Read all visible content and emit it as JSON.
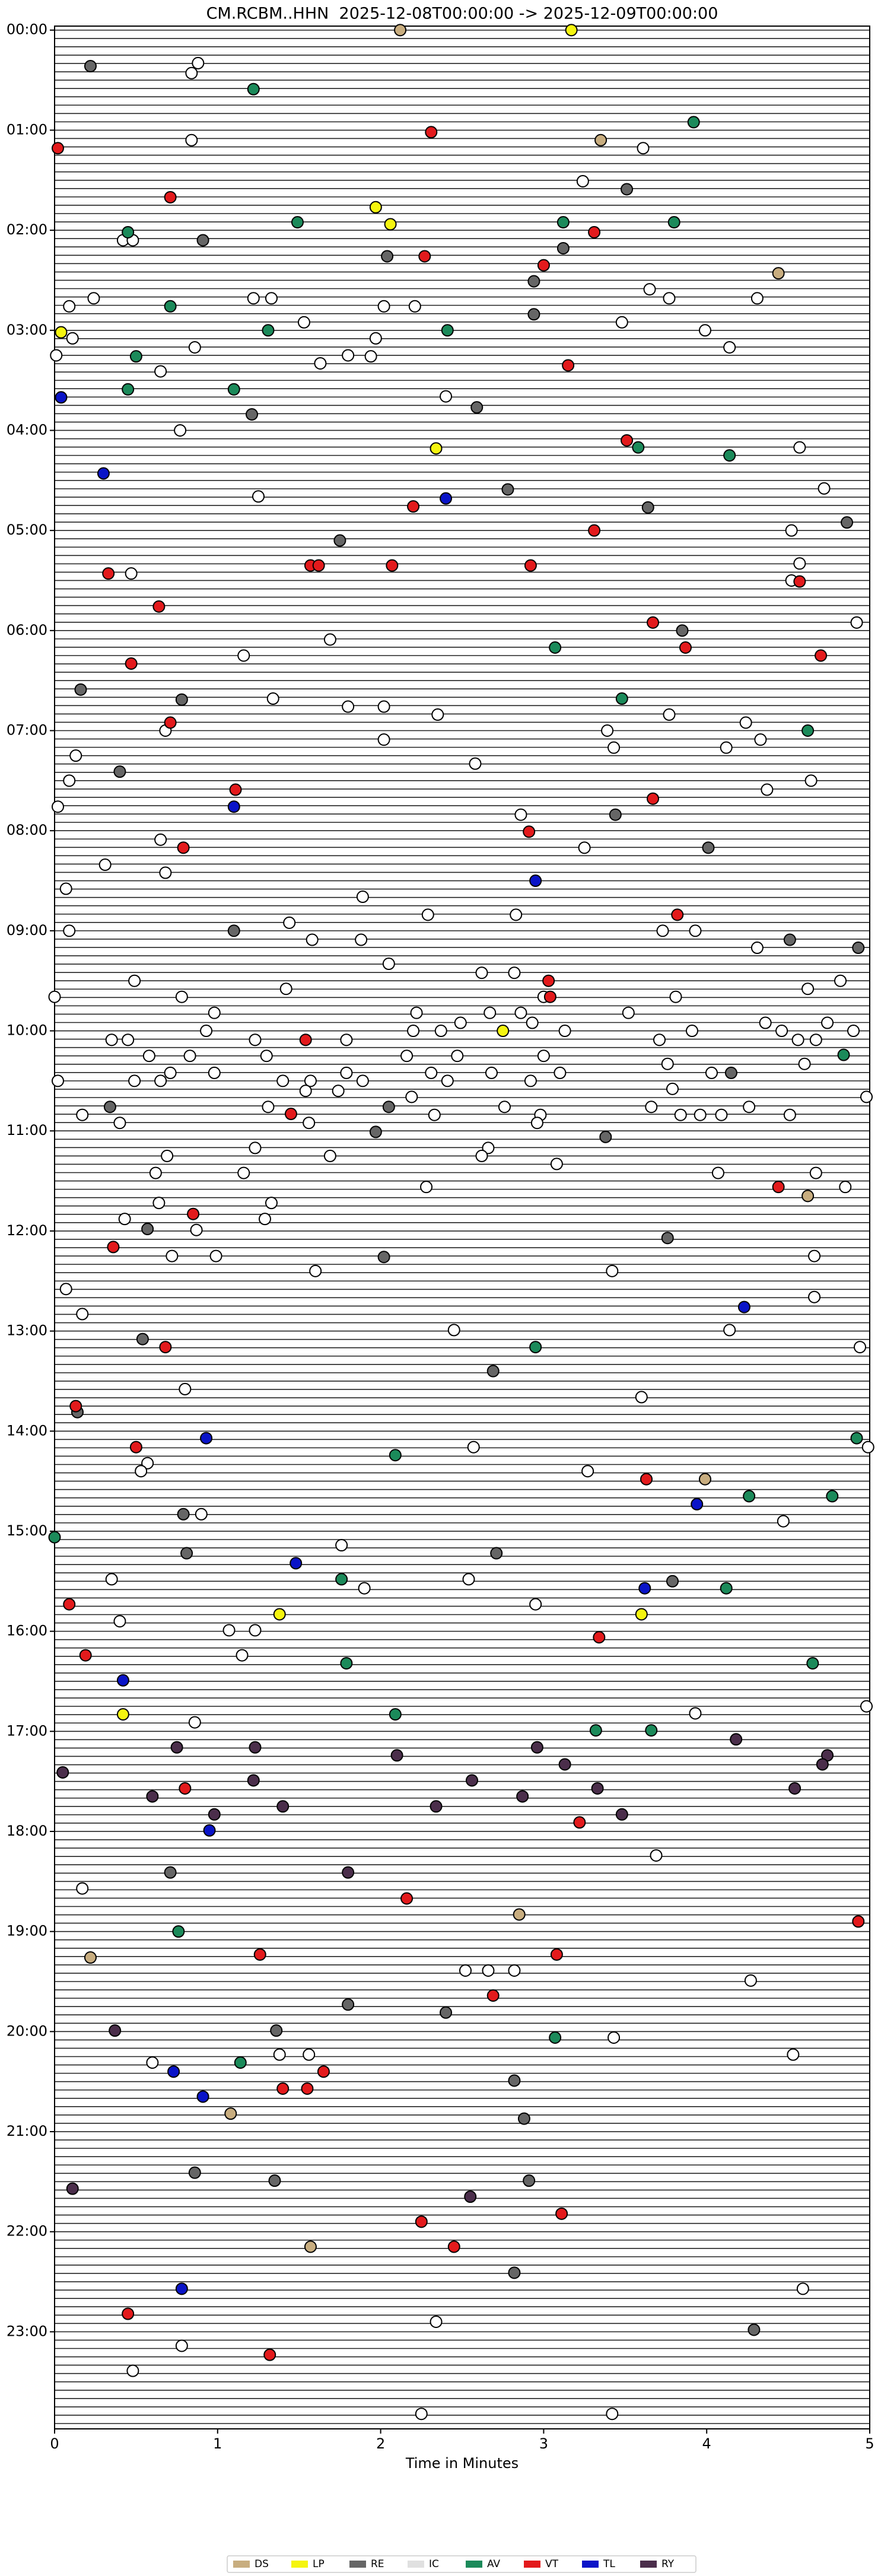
{
  "chart_data": {
    "type": "helicorder",
    "title": "CM.RCBM..HHN  2025-12-08T00:00:00 -> 2025-12-09T00:00:00",
    "x_label": "Time in Minutes",
    "xlim": [
      0,
      5
    ],
    "xticks": [
      0,
      1,
      2,
      3,
      4,
      5
    ],
    "ylim": [
      -0.04,
      23.97
    ],
    "y_inverted": true,
    "yticks": [
      {
        "value": 0,
        "label": "00:00"
      },
      {
        "value": 1,
        "label": "01:00"
      },
      {
        "value": 2,
        "label": "02:00"
      },
      {
        "value": 3,
        "label": "03:00"
      },
      {
        "value": 4,
        "label": "04:00"
      },
      {
        "value": 5,
        "label": "05:00"
      },
      {
        "value": 6,
        "label": "06:00"
      },
      {
        "value": 7,
        "label": "07:00"
      },
      {
        "value": 8,
        "label": "08:00"
      },
      {
        "value": 9,
        "label": "09:00"
      },
      {
        "value": 10,
        "label": "10:00"
      },
      {
        "value": 11,
        "label": "11:00"
      },
      {
        "value": 12,
        "label": "12:00"
      },
      {
        "value": 13,
        "label": "13:00"
      },
      {
        "value": 14,
        "label": "14:00"
      },
      {
        "value": 15,
        "label": "15:00"
      },
      {
        "value": 16,
        "label": "16:00"
      },
      {
        "value": 17,
        "label": "17:00"
      },
      {
        "value": 18,
        "label": "18:00"
      },
      {
        "value": 19,
        "label": "19:00"
      },
      {
        "value": 20,
        "label": "20:00"
      },
      {
        "value": 21,
        "label": "21:00"
      },
      {
        "value": 22,
        "label": "22:00"
      },
      {
        "value": 23,
        "label": "23:00"
      }
    ],
    "legend_position": "bottom",
    "series": [
      {
        "name": "DS",
        "color": "#c8ad7f",
        "x": [
          2.12,
          3.35,
          4.44,
          3.99,
          1.57,
          0.22,
          2.85,
          1.08,
          4.62
        ],
        "values": [
          0,
          1.1,
          2.43,
          14.48,
          22.15,
          19.26,
          18.83,
          20.82,
          11.65
        ]
      },
      {
        "name": "LP",
        "color": "#f5f50f",
        "x": [
          3.17,
          0.04,
          1.97,
          2.06,
          2.34,
          2.75,
          1.38,
          3.6,
          0.42
        ],
        "values": [
          0,
          3.02,
          1.77,
          1.94,
          4.18,
          10.0,
          15.83,
          15.83,
          16.83
        ]
      },
      {
        "name": "RE",
        "color": "#666666",
        "x": [
          0.22,
          3.51,
          0.91,
          2.04,
          3.12,
          2.94,
          2.94,
          2.59,
          1.21,
          2.78,
          1.75,
          3.64,
          4.86,
          3.85,
          0.16,
          0.78,
          0.4,
          3.44,
          4.01,
          1.1,
          4.51,
          4.93,
          4.15,
          2.05,
          0.34,
          1.97,
          3.38,
          0.57,
          2.02,
          3.76,
          0.54,
          2.69,
          0.14,
          0.79,
          0.81,
          2.71,
          3.79,
          0.71,
          1.36,
          1.8,
          2.4,
          2.88,
          2.82,
          0.86,
          1.35,
          2.91,
          2.82,
          4.29
        ],
        "values": [
          0.36,
          1.59,
          2.1,
          2.26,
          2.18,
          2.51,
          2.84,
          3.77,
          3.84,
          4.59,
          5.1,
          4.77,
          4.92,
          6.0,
          6.59,
          6.69,
          7.41,
          7.84,
          8.17,
          9.0,
          9.09,
          9.17,
          10.42,
          10.76,
          10.76,
          11.01,
          11.06,
          11.98,
          12.26,
          12.07,
          13.08,
          13.4,
          13.81,
          14.83,
          15.22,
          15.22,
          15.5,
          18.41,
          19.99,
          19.73,
          19.81,
          20.87,
          20.49,
          21.41,
          21.49,
          21.49,
          22.41,
          22.98
        ]
      },
      {
        "name": "IC",
        "color": "#ffffff",
        "x": [
          0.88,
          0.84,
          0.84,
          3.24,
          3.61,
          0.42,
          0.48,
          3.65,
          3.77,
          4.31,
          0.24,
          0.09,
          1.22,
          1.33,
          2.02,
          2.21,
          1.53,
          3.48,
          3.99,
          0.11,
          0.86,
          4.14,
          1.97,
          0.01,
          1.8,
          1.94,
          1.63,
          0.65,
          2.4,
          0.77,
          4.57,
          4.72,
          1.25,
          4.52,
          4.57,
          4.52,
          0.47,
          1.69,
          1.16,
          4.92,
          1.34,
          1.8,
          2.02,
          2.35,
          3.77,
          4.24,
          0.68,
          2.02,
          3.39,
          4.33,
          4.12,
          3.43,
          0.13,
          2.58,
          0.09,
          4.37,
          4.64,
          0.02,
          2.86,
          0.65,
          3.25,
          0.31,
          0.68,
          0.07,
          1.89,
          2.29,
          2.83,
          0.09,
          1.44,
          1.58,
          1.88,
          3.73,
          3.93,
          4.31,
          0.49,
          2.05,
          2.62,
          2.82,
          4.62,
          4.82,
          0,
          0.78,
          1.42,
          3.0,
          3.81,
          0.98,
          2.22,
          2.67,
          2.86,
          3.52,
          0.93,
          0.35,
          0.45,
          1.23,
          1.79,
          2.2,
          2.37,
          2.49,
          2.93,
          3.13,
          3.71,
          3.91,
          4.36,
          4.46,
          4.56,
          4.67,
          4.74,
          4.9,
          0.58,
          0.83,
          1.3,
          2.16,
          2.47,
          3.0,
          3.76,
          4.6,
          0.71,
          0.98,
          1.79,
          2.31,
          2.68,
          3.1,
          4.03,
          0.02,
          0.49,
          0.65,
          1.4,
          1.57,
          1.89,
          2.41,
          2.92,
          3.79,
          1.54,
          1.74,
          2.19,
          4.98,
          0.17,
          1.31,
          2.33,
          2.76,
          2.98,
          3.66,
          4.26,
          0.4,
          1.56,
          2.96,
          3.84,
          3.96,
          4.09,
          4.51,
          1.23,
          0.69,
          2.66,
          2.62,
          3.08,
          0.62,
          1.16,
          1.69,
          4.07,
          4.67,
          4.85,
          2.28,
          0.64,
          1.33,
          0.43,
          1.29,
          0.87,
          0.72,
          0.99,
          1.6,
          4.66,
          3.42,
          0.07,
          0.17,
          4.66,
          2.45,
          4.14,
          4.94,
          0.8,
          3.6,
          2.57,
          4.99,
          0.57,
          3.27,
          0.53,
          4.47,
          0.9,
          1.76,
          0.35,
          1.9,
          2.54,
          2.95,
          0.4,
          1.07,
          1.23,
          1.15,
          3.93,
          4.98,
          0.86,
          0.17,
          3.69,
          2.52,
          2.66,
          2.82,
          4.27,
          3.43,
          0.6,
          1.38,
          1.56,
          4.53,
          4.59,
          2.34,
          0.78,
          0.48,
          2.25,
          3.42
        ],
        "values": [
          0.33,
          0.43,
          1.1,
          1.51,
          1.18,
          2.1,
          2.1,
          2.59,
          2.68,
          2.68,
          2.68,
          2.76,
          2.68,
          2.68,
          2.76,
          2.76,
          2.92,
          2.92,
          3.0,
          3.08,
          3.17,
          3.17,
          3.08,
          3.25,
          3.25,
          3.26,
          3.33,
          3.41,
          3.66,
          4.0,
          4.17,
          4.58,
          4.66,
          5.0,
          5.33,
          5.5,
          5.43,
          6.09,
          6.25,
          5.92,
          6.68,
          6.76,
          6.76,
          6.84,
          6.84,
          6.92,
          7.0,
          7.09,
          7.0,
          7.09,
          7.17,
          7.17,
          7.25,
          7.33,
          7.5,
          7.59,
          7.5,
          7.76,
          7.84,
          8.09,
          8.17,
          8.34,
          8.42,
          8.58,
          8.66,
          8.84,
          8.84,
          9.0,
          8.92,
          9.09,
          9.09,
          9.0,
          9.0,
          9.17,
          9.5,
          9.33,
          9.42,
          9.42,
          9.58,
          9.5,
          9.66,
          9.66,
          9.58,
          9.66,
          9.66,
          9.82,
          9.82,
          9.82,
          9.82,
          9.82,
          10.0,
          10.09,
          10.09,
          10.09,
          10.09,
          10.0,
          10.0,
          9.92,
          9.92,
          10.0,
          10.09,
          10.0,
          9.92,
          10.0,
          10.09,
          10.09,
          9.92,
          10.0,
          10.25,
          10.25,
          10.25,
          10.25,
          10.25,
          10.25,
          10.33,
          10.33,
          10.42,
          10.42,
          10.42,
          10.42,
          10.42,
          10.42,
          10.42,
          10.5,
          10.5,
          10.5,
          10.5,
          10.5,
          10.5,
          10.5,
          10.5,
          10.58,
          10.6,
          10.6,
          10.66,
          10.66,
          10.84,
          10.76,
          10.84,
          10.76,
          10.84,
          10.76,
          10.76,
          10.92,
          10.92,
          10.92,
          10.84,
          10.84,
          10.84,
          10.84,
          11.17,
          11.25,
          11.17,
          11.25,
          11.33,
          11.42,
          11.42,
          11.25,
          11.42,
          11.42,
          11.56,
          11.56,
          11.72,
          11.72,
          11.88,
          11.88,
          11.99,
          12.25,
          12.25,
          12.4,
          12.25,
          12.4,
          12.58,
          12.83,
          12.66,
          12.99,
          12.99,
          13.16,
          13.58,
          13.66,
          14.16,
          14.16,
          14.32,
          14.4,
          14.4,
          14.9,
          14.83,
          15.14,
          15.48,
          15.57,
          15.48,
          15.73,
          15.9,
          15.99,
          15.99,
          16.24,
          16.82,
          16.75,
          16.91,
          18.57,
          18.24,
          19.39,
          19.39,
          19.39,
          19.49,
          20.06,
          20.31,
          20.23,
          20.23,
          20.23,
          22.57,
          22.9,
          23.14,
          23.39,
          23.82,
          23.82
        ]
      },
      {
        "name": "AV",
        "color": "#1b8a5a",
        "x": [
          1.22,
          3.92,
          0.45,
          1.49,
          3.12,
          3.8,
          0.71,
          1.31,
          2.41,
          0.5,
          0.45,
          1.1,
          3.58,
          4.14,
          3.07,
          3.48,
          4.62,
          4.84,
          2.95,
          4.92,
          2.09,
          4.26,
          4.77,
          0,
          1.76,
          4.12,
          1.79,
          4.65,
          2.09,
          3.32,
          3.66,
          0.76,
          1.14,
          3.07
        ],
        "values": [
          0.59,
          0.92,
          2.02,
          1.92,
          1.92,
          1.92,
          2.76,
          3.0,
          3.0,
          3.26,
          3.59,
          3.59,
          4.17,
          4.25,
          6.17,
          6.68,
          7.0,
          10.24,
          13.16,
          14.07,
          14.24,
          14.65,
          14.65,
          15.06,
          15.48,
          15.57,
          16.32,
          16.32,
          16.83,
          16.99,
          16.99,
          19.0,
          20.31,
          20.06
        ]
      },
      {
        "name": "VT",
        "color": "#e31a1c",
        "x": [
          2.31,
          0.02,
          0.71,
          3.31,
          2.27,
          3.0,
          3.15,
          3.51,
          2.2,
          3.31,
          1.57,
          1.62,
          2.07,
          2.92,
          0.33,
          4.57,
          0.64,
          3.67,
          3.87,
          4.7,
          0.47,
          0.71,
          1.11,
          3.67,
          2.91,
          0.79,
          3.82,
          3.03,
          3.04,
          1.54,
          1.45,
          4.44,
          0.85,
          0.36,
          0.68,
          0.13,
          0.5,
          3.63,
          0.09,
          3.34,
          0.19,
          0.8,
          3.22,
          2.16,
          4.93,
          1.26,
          3.08,
          2.69,
          1.65,
          1.4,
          1.55,
          2.25,
          3.11,
          2.45,
          0.45,
          1.32
        ],
        "values": [
          1.02,
          1.18,
          1.67,
          2.02,
          2.26,
          2.35,
          3.35,
          4.1,
          4.76,
          5.0,
          5.35,
          5.35,
          5.35,
          5.35,
          5.43,
          5.51,
          5.76,
          5.92,
          6.17,
          6.25,
          6.33,
          6.92,
          7.59,
          7.68,
          8.01,
          8.17,
          8.84,
          9.5,
          9.66,
          10.09,
          10.83,
          11.56,
          11.83,
          12.16,
          13.16,
          13.75,
          14.16,
          14.48,
          15.73,
          16.06,
          16.24,
          17.57,
          17.91,
          18.67,
          18.9,
          19.23,
          19.23,
          19.64,
          20.4,
          20.57,
          20.57,
          21.9,
          21.82,
          22.15,
          22.82,
          23.23
        ]
      },
      {
        "name": "TL",
        "color": "#0a14c8",
        "x": [
          0.04,
          0.3,
          2.4,
          1.1,
          2.95,
          4.23,
          0.93,
          3.94,
          1.48,
          3.62,
          0.42,
          0.73,
          0.91,
          0.95,
          0.78
        ],
        "values": [
          3.67,
          4.43,
          4.68,
          7.76,
          8.5,
          12.76,
          14.07,
          14.73,
          15.32,
          15.57,
          16.49,
          20.4,
          20.65,
          17.99,
          22.57
        ]
      },
      {
        "name": "RY",
        "color": "#4b2e4b",
        "x": [
          0.75,
          1.23,
          2.1,
          2.96,
          4.18,
          4.74,
          0.05,
          1.22,
          2.56,
          3.13,
          4.71,
          0.6,
          1.4,
          2.34,
          2.87,
          3.33,
          4.54,
          0.98,
          3.48,
          1.8,
          0.37,
          0.11,
          2.55
        ],
        "values": [
          17.16,
          17.16,
          17.24,
          17.16,
          17.08,
          17.24,
          17.41,
          17.49,
          17.49,
          17.33,
          17.33,
          17.65,
          17.75,
          17.75,
          17.65,
          17.57,
          17.57,
          17.83,
          17.83,
          18.41,
          19.99,
          21.57,
          21.65
        ]
      }
    ]
  }
}
